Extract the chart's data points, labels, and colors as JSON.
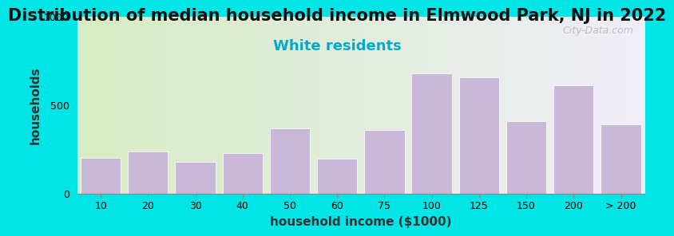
{
  "title": "Distribution of median household income in Elmwood Park, NJ in 2022",
  "subtitle": "White residents",
  "xlabel": "household income ($1000)",
  "ylabel": "households",
  "categories": [
    "10",
    "20",
    "30",
    "40",
    "50",
    "60",
    "75",
    "100",
    "125",
    "150",
    "200",
    "> 200"
  ],
  "values": [
    200,
    240,
    180,
    230,
    370,
    195,
    360,
    680,
    655,
    410,
    610,
    390
  ],
  "bar_color": "#c9b8d8",
  "bar_edgecolor": "#ffffff",
  "background_outer": "#00e5e5",
  "background_inner_left": "#d6ecc2",
  "background_inner_right": "#f0eef8",
  "ylim": [
    0,
    1000
  ],
  "yticks": [
    0,
    500,
    1000
  ],
  "title_fontsize": 15,
  "subtitle_fontsize": 13,
  "subtitle_color": "#00aacc",
  "axis_label_fontsize": 11,
  "tick_fontsize": 9,
  "watermark": "City-Data.com"
}
